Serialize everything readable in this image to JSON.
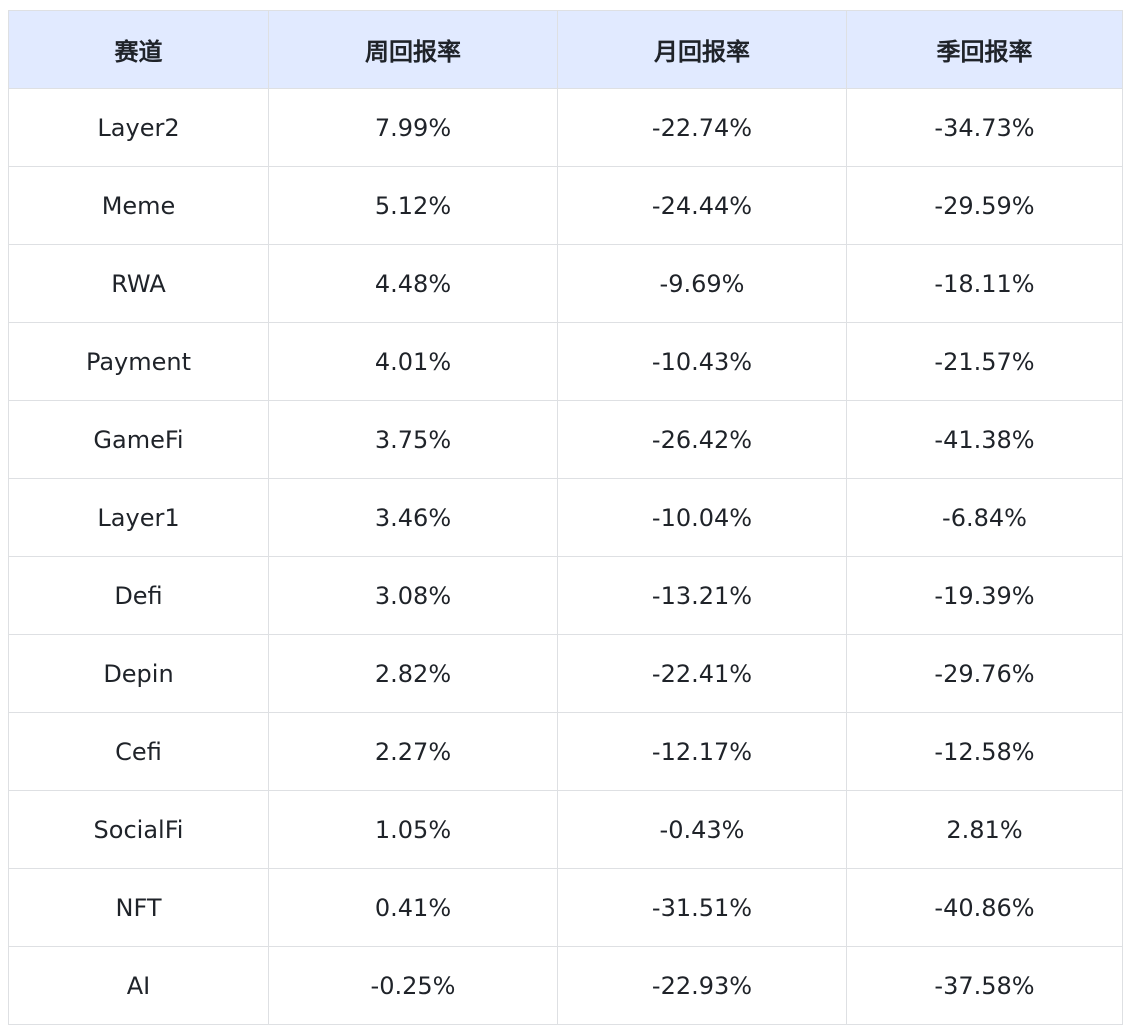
{
  "table": {
    "headers": [
      "赛道",
      "周回报率",
      "月回报率",
      "季回报率"
    ],
    "rows": [
      [
        "Layer2",
        "7.99%",
        "-22.74%",
        "-34.73%"
      ],
      [
        "Meme",
        "5.12%",
        "-24.44%",
        "-29.59%"
      ],
      [
        "RWA",
        "4.48%",
        "-9.69%",
        "-18.11%"
      ],
      [
        "Payment",
        "4.01%",
        "-10.43%",
        "-21.57%"
      ],
      [
        "GameFi",
        "3.75%",
        "-26.42%",
        "-41.38%"
      ],
      [
        "Layer1",
        "3.46%",
        "-10.04%",
        "-6.84%"
      ],
      [
        "Defi",
        "3.08%",
        "-13.21%",
        "-19.39%"
      ],
      [
        "Depin",
        "2.82%",
        "-22.41%",
        "-29.76%"
      ],
      [
        "Cefi",
        "2.27%",
        "-12.17%",
        "-12.58%"
      ],
      [
        "SocialFi",
        "1.05%",
        "-0.43%",
        "2.81%"
      ],
      [
        "NFT",
        "0.41%",
        "-31.51%",
        "-40.86%"
      ],
      [
        "AI",
        "-0.25%",
        "-22.93%",
        "-37.58%"
      ]
    ]
  },
  "colors": {
    "header_background": "#e1eaff",
    "border": "#dee0e3",
    "text": "#1f2329"
  }
}
